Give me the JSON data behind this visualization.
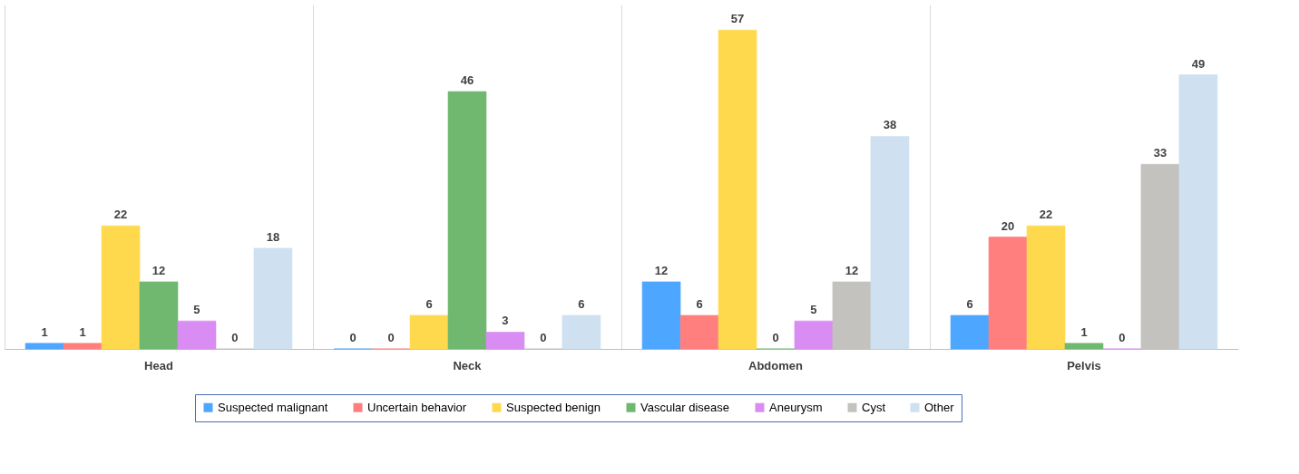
{
  "chart_data": {
    "type": "bar",
    "categories": [
      "Head",
      "Neck",
      "Abdomen",
      "Pelvis"
    ],
    "series": [
      {
        "name": "Suspected malignant",
        "color": "#4da6ff",
        "values": [
          1,
          0,
          12,
          6
        ]
      },
      {
        "name": "Uncertain behavior",
        "color": "#ff7f7f",
        "values": [
          1,
          0,
          6,
          20
        ]
      },
      {
        "name": "Suspected benign",
        "color": "#ffd94d",
        "values": [
          22,
          6,
          57,
          22
        ]
      },
      {
        "name": "Vascular disease",
        "color": "#70b870",
        "values": [
          12,
          46,
          0,
          1
        ]
      },
      {
        "name": "Aneurysm",
        "color": "#d98cf2",
        "values": [
          5,
          3,
          5,
          0
        ]
      },
      {
        "name": "Cyst",
        "color": "#c4c2bf",
        "values": [
          0,
          0,
          12,
          33
        ]
      },
      {
        "name": "Other",
        "color": "#cfe0f0",
        "values": [
          18,
          6,
          38,
          49
        ]
      }
    ],
    "data_labels": true,
    "legend": "bottom",
    "grid": "x",
    "tick_labels": "x"
  }
}
